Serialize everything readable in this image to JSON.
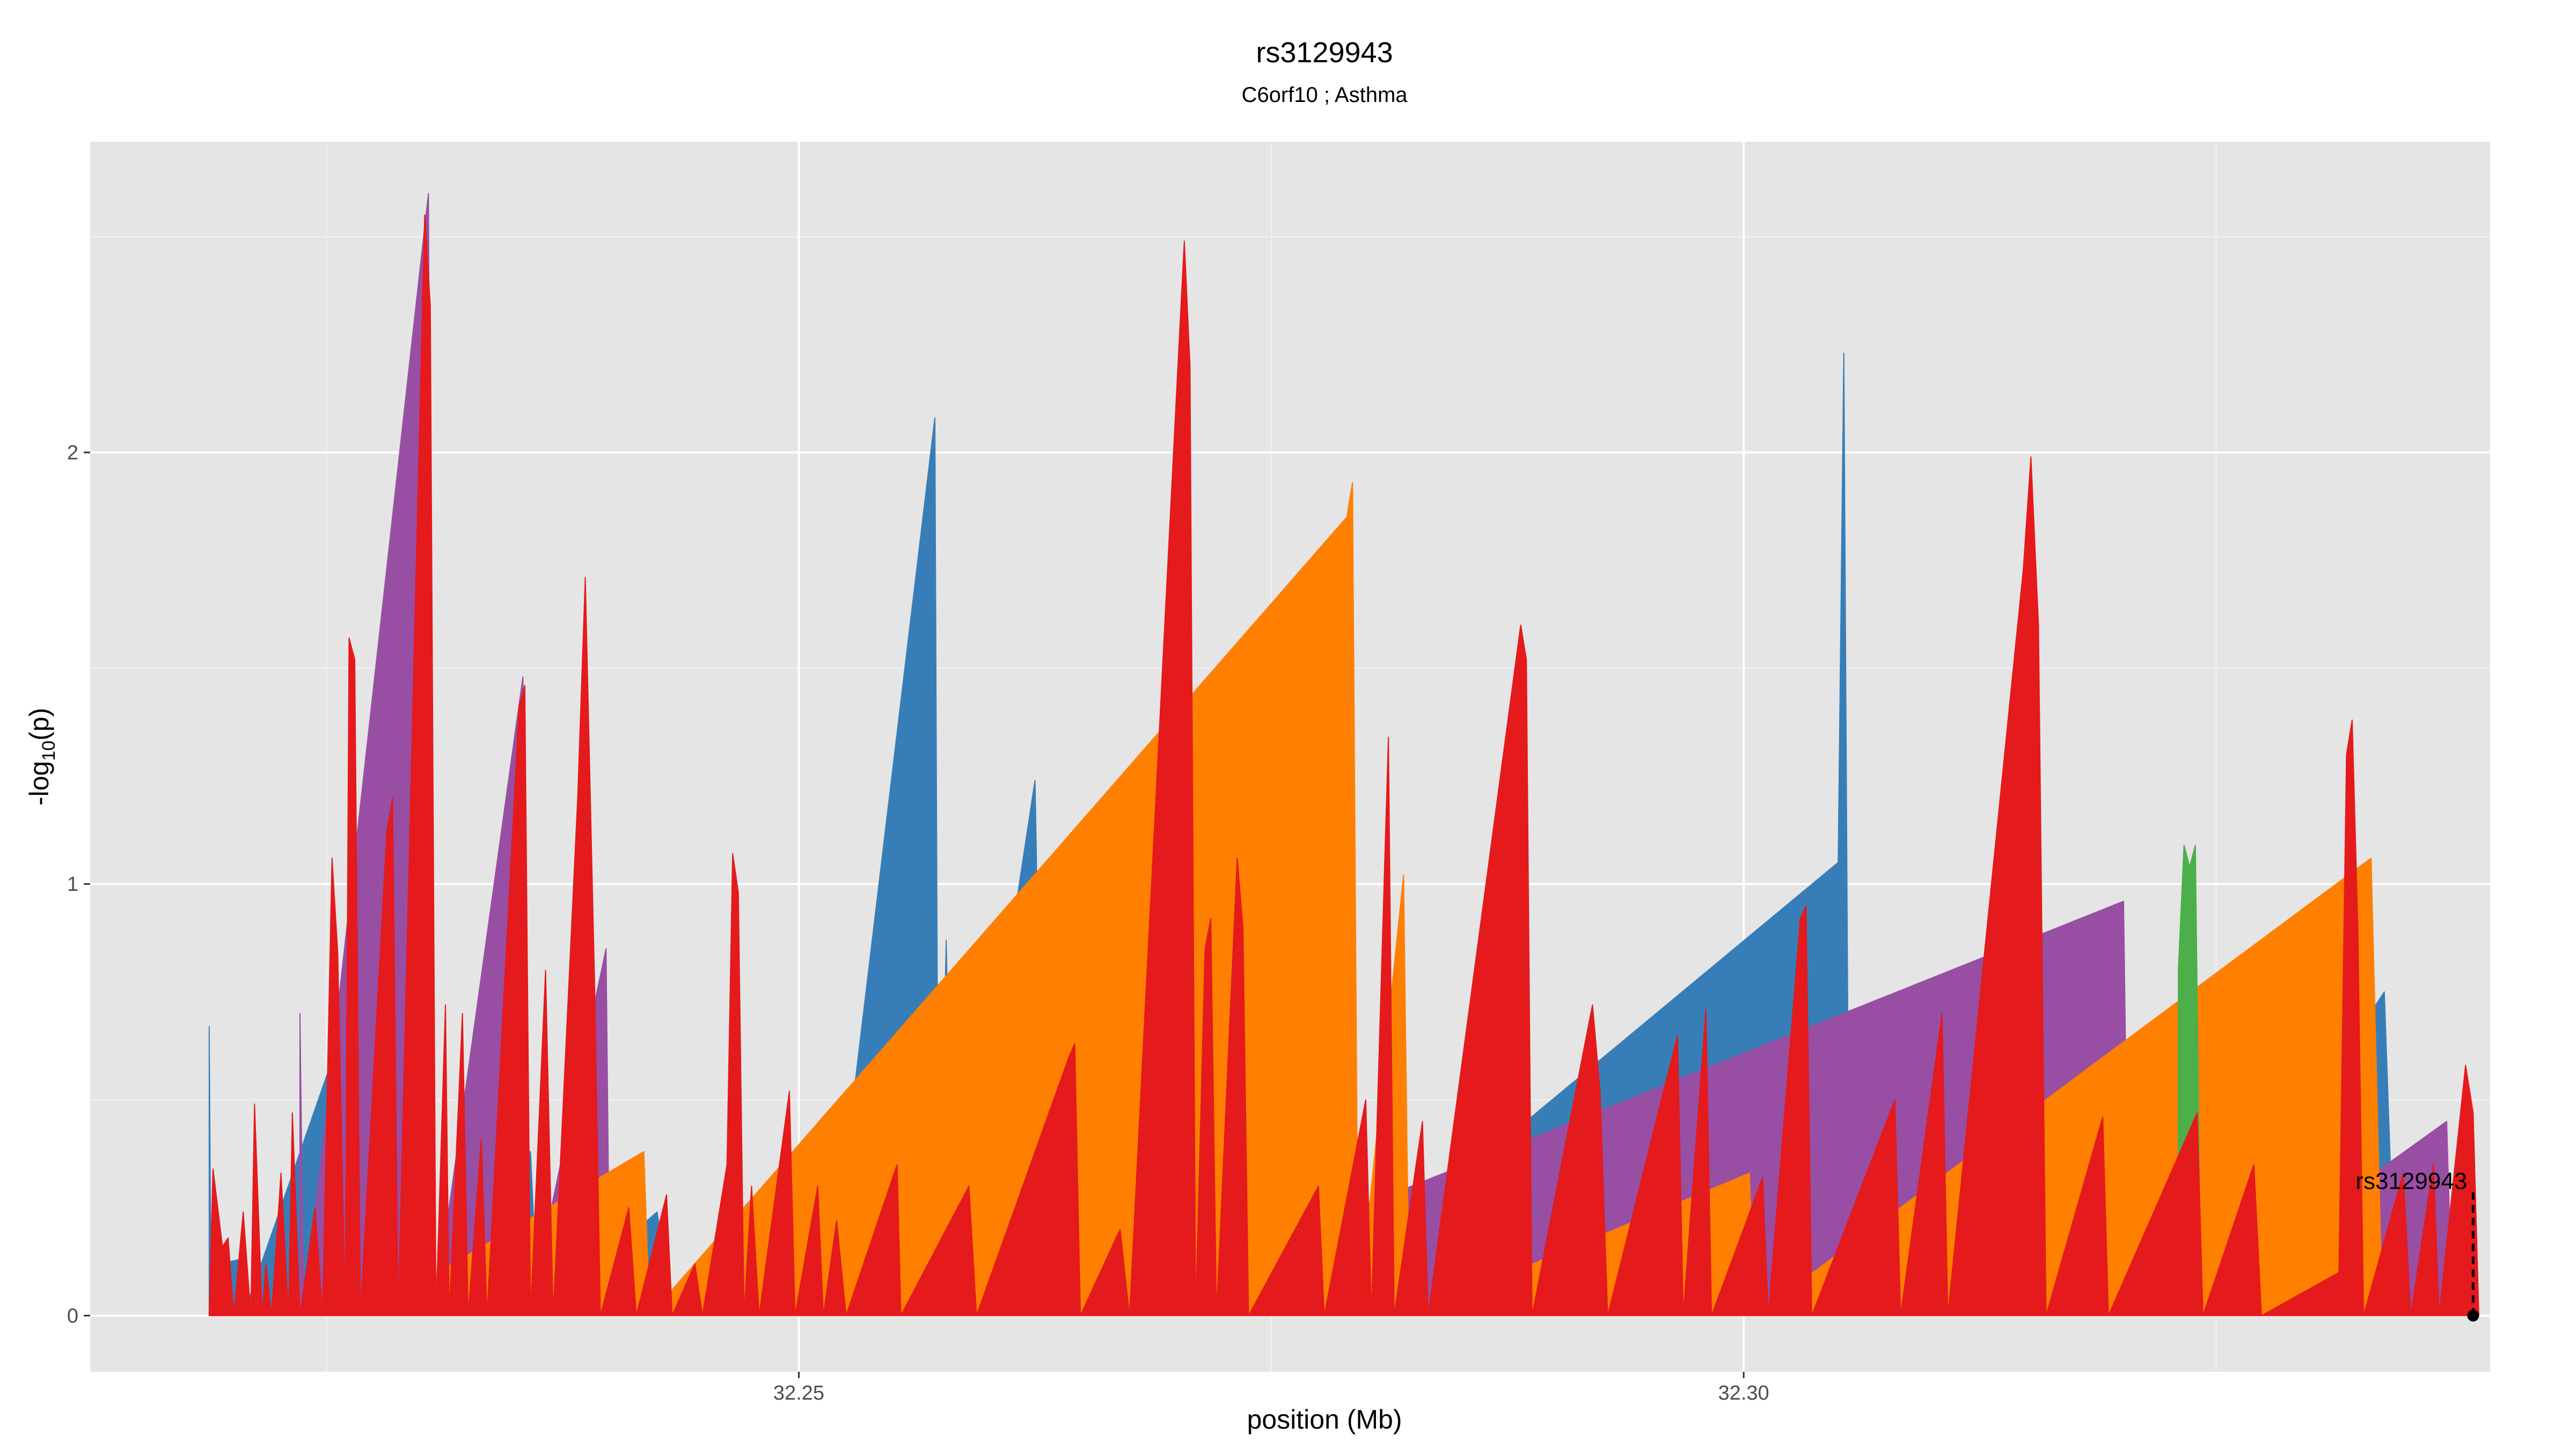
{
  "chart_data": {
    "type": "area",
    "title": "rs3129943",
    "subtitle": "C6orf10 ; Asthma",
    "xlabel": "position (Mb)",
    "ylabel": "-log10(p)",
    "ylabel_parts": {
      "pre": "-log",
      "sub": "10",
      "post": "(p)"
    },
    "xlim": [
      32.2125,
      32.3395
    ],
    "ylim": [
      -0.13,
      2.72
    ],
    "x_ticks": [
      32.25,
      32.3
    ],
    "x_tick_labels": [
      "32.25",
      "32.30"
    ],
    "y_ticks": [
      0,
      1,
      2
    ],
    "y_tick_labels": [
      "0",
      "1",
      "2"
    ],
    "grid": true,
    "legend": "none",
    "colors": {
      "panel_bg": "#e5e5e5",
      "grid_major": "#ffffff",
      "grid_minor": "#f2f2f2",
      "red": "#e41a1c",
      "blue": "#377eb8",
      "purple": "#984ea3",
      "orange": "#ff7f00",
      "green": "#4daf4a"
    },
    "series": [
      {
        "color": "blue",
        "points": [
          [
            32.2188,
            0.67
          ],
          [
            32.2189,
            0
          ],
          [
            32.2194,
            0.12
          ],
          [
            32.2204,
            0.13
          ],
          [
            32.2206,
            0
          ],
          [
            32.2264,
            0.73
          ],
          [
            32.2266,
            0.58
          ],
          [
            32.2268,
            0
          ],
          [
            32.2286,
            0.5
          ],
          [
            32.2292,
            0
          ],
          [
            32.2358,
            0.38
          ],
          [
            32.2362,
            0
          ],
          [
            32.2425,
            0.24
          ],
          [
            32.2433,
            0
          ],
          [
            32.2491,
            0.3
          ],
          [
            32.2505,
            0.27
          ],
          [
            32.2515,
            0
          ],
          [
            32.2572,
            2.08
          ],
          [
            32.2574,
            0
          ],
          [
            32.2578,
            0.87
          ],
          [
            32.2582,
            0
          ],
          [
            32.2625,
            1.24
          ],
          [
            32.263,
            0
          ],
          [
            32.2684,
            0.08
          ],
          [
            32.269,
            0
          ],
          [
            32.2737,
            0.2
          ],
          [
            32.2741,
            0
          ],
          [
            32.2757,
            0.45
          ],
          [
            32.2761,
            0
          ],
          [
            32.305,
            1.05
          ],
          [
            32.3053,
            2.23
          ],
          [
            32.3056,
            0
          ],
          [
            32.3119,
            0.4
          ],
          [
            32.3124,
            0
          ],
          [
            32.3217,
            0.16
          ],
          [
            32.3227,
            0
          ],
          [
            32.3339,
            0.75
          ],
          [
            32.3345,
            0
          ]
        ]
      },
      {
        "color": "purple",
        "points": [
          [
            32.2236,
            0.7
          ],
          [
            32.2238,
            0
          ],
          [
            32.2304,
            2.6
          ],
          [
            32.2307,
            0
          ],
          [
            32.2354,
            1.48
          ],
          [
            32.2357,
            0
          ],
          [
            32.2398,
            0.85
          ],
          [
            32.24,
            0
          ],
          [
            32.265,
            0.38
          ],
          [
            32.2653,
            0
          ],
          [
            32.3201,
            0.96
          ],
          [
            32.3204,
            0
          ],
          [
            32.3226,
            0.27
          ],
          [
            32.3229,
            0
          ],
          [
            32.3372,
            0.45
          ],
          [
            32.3375,
            0
          ]
        ]
      },
      {
        "color": "orange",
        "points": [
          [
            32.2264,
            0.09
          ],
          [
            32.227,
            0
          ],
          [
            32.2418,
            0.38
          ],
          [
            32.2421,
            0
          ],
          [
            32.279,
            1.85
          ],
          [
            32.2793,
            1.93
          ],
          [
            32.2796,
            0
          ],
          [
            32.282,
            1.02
          ],
          [
            32.2823,
            0
          ],
          [
            32.3003,
            0.33
          ],
          [
            32.3006,
            0
          ],
          [
            32.3332,
            1.06
          ],
          [
            32.3338,
            0
          ]
        ]
      },
      {
        "color": "green",
        "points": [
          [
            32.323,
            0.8
          ],
          [
            32.3233,
            1.09
          ],
          [
            32.3236,
            1.04
          ],
          [
            32.3239,
            1.09
          ],
          [
            32.3242,
            0
          ]
        ]
      },
      {
        "color": "red",
        "points": [
          [
            32.2188,
            0
          ],
          [
            32.219,
            0.34
          ],
          [
            32.2195,
            0.16
          ],
          [
            32.2198,
            0.18
          ],
          [
            32.2201,
            0
          ],
          [
            32.2206,
            0.24
          ],
          [
            32.221,
            0
          ],
          [
            32.2212,
            0.49
          ],
          [
            32.2216,
            0
          ],
          [
            32.2218,
            0.12
          ],
          [
            32.2221,
            0
          ],
          [
            32.2226,
            0.33
          ],
          [
            32.223,
            0
          ],
          [
            32.2232,
            0.47
          ],
          [
            32.2236,
            0
          ],
          [
            32.2244,
            0.25
          ],
          [
            32.2248,
            0
          ],
          [
            32.2253,
            1.06
          ],
          [
            32.2256,
            0.84
          ],
          [
            32.226,
            0
          ],
          [
            32.2262,
            1.57
          ],
          [
            32.2265,
            1.52
          ],
          [
            32.2268,
            0
          ],
          [
            32.2282,
            1.12
          ],
          [
            32.2285,
            1.2
          ],
          [
            32.2288,
            0
          ],
          [
            32.2302,
            2.55
          ],
          [
            32.2305,
            2.34
          ],
          [
            32.2308,
            0
          ],
          [
            32.2313,
            0.72
          ],
          [
            32.2315,
            0
          ],
          [
            32.2322,
            0.7
          ],
          [
            32.2325,
            0
          ],
          [
            32.2332,
            0.41
          ],
          [
            32.2335,
            0
          ],
          [
            32.2352,
            1.41
          ],
          [
            32.2355,
            1.46
          ],
          [
            32.2358,
            0
          ],
          [
            32.2366,
            0.8
          ],
          [
            32.237,
            0
          ],
          [
            32.2383,
            1.2
          ],
          [
            32.2387,
            1.71
          ],
          [
            32.2392,
            0.75
          ],
          [
            32.2395,
            0
          ],
          [
            32.241,
            0.25
          ],
          [
            32.2414,
            0
          ],
          [
            32.243,
            0.28
          ],
          [
            32.2433,
            0
          ],
          [
            32.2445,
            0.12
          ],
          [
            32.2449,
            0
          ],
          [
            32.2462,
            0.35
          ],
          [
            32.2465,
            1.07
          ],
          [
            32.2468,
            0.98
          ],
          [
            32.2471,
            0
          ],
          [
            32.2475,
            0.3
          ],
          [
            32.2479,
            0
          ],
          [
            32.2495,
            0.52
          ],
          [
            32.2498,
            0
          ],
          [
            32.251,
            0.3
          ],
          [
            32.2513,
            0
          ],
          [
            32.252,
            0.22
          ],
          [
            32.2525,
            0
          ],
          [
            32.2552,
            0.35
          ],
          [
            32.2554,
            0
          ],
          [
            32.259,
            0.3
          ],
          [
            32.2594,
            0
          ],
          [
            32.2643,
            0.6
          ],
          [
            32.2646,
            0.63
          ],
          [
            32.2649,
            0
          ],
          [
            32.267,
            0.2
          ],
          [
            32.2675,
            0
          ],
          [
            32.2704,
            2.49
          ],
          [
            32.2707,
            2.2
          ],
          [
            32.271,
            0
          ],
          [
            32.2715,
            0.85
          ],
          [
            32.2718,
            0.92
          ],
          [
            32.2721,
            0
          ],
          [
            32.2732,
            1.06
          ],
          [
            32.2735,
            0.9
          ],
          [
            32.2738,
            0
          ],
          [
            32.2775,
            0.3
          ],
          [
            32.2778,
            0
          ],
          [
            32.28,
            0.5
          ],
          [
            32.2803,
            0
          ],
          [
            32.2812,
            1.34
          ],
          [
            32.2815,
            0
          ],
          [
            32.283,
            0.45
          ],
          [
            32.2833,
            0
          ],
          [
            32.2882,
            1.6
          ],
          [
            32.2885,
            1.52
          ],
          [
            32.2888,
            0
          ],
          [
            32.292,
            0.72
          ],
          [
            32.2924,
            0.52
          ],
          [
            32.2928,
            0
          ],
          [
            32.2965,
            0.65
          ],
          [
            32.2968,
            0
          ],
          [
            32.298,
            0.71
          ],
          [
            32.2983,
            0
          ],
          [
            32.301,
            0.32
          ],
          [
            32.3013,
            0
          ],
          [
            32.303,
            0.92
          ],
          [
            32.3033,
            0.95
          ],
          [
            32.3036,
            0
          ],
          [
            32.308,
            0.5
          ],
          [
            32.3083,
            0
          ],
          [
            32.3105,
            0.7
          ],
          [
            32.3108,
            0
          ],
          [
            32.3148,
            1.73
          ],
          [
            32.3152,
            1.99
          ],
          [
            32.3156,
            1.6
          ],
          [
            32.316,
            0
          ],
          [
            32.319,
            0.46
          ],
          [
            32.3193,
            0
          ],
          [
            32.324,
            0.47
          ],
          [
            32.3243,
            0
          ],
          [
            32.327,
            0.35
          ],
          [
            32.3274,
            0
          ],
          [
            32.3315,
            0.1
          ],
          [
            32.3319,
            1.3
          ],
          [
            32.3322,
            1.38
          ],
          [
            32.3325,
            0.9
          ],
          [
            32.3328,
            0
          ],
          [
            32.3349,
            0.33
          ],
          [
            32.3353,
            0
          ],
          [
            32.3365,
            0.35
          ],
          [
            32.3368,
            0
          ],
          [
            32.3382,
            0.58
          ],
          [
            32.3386,
            0.47
          ],
          [
            32.3389,
            0
          ]
        ]
      }
    ],
    "highlight": {
      "label": "rs3129943",
      "x": 32.3386,
      "y": 0
    }
  }
}
